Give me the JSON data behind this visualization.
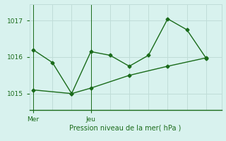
{
  "line1_x": [
    0,
    1,
    2,
    3,
    4,
    5,
    6,
    7,
    8,
    9
  ],
  "line1_y": [
    1016.2,
    1015.85,
    1015.0,
    1016.15,
    1016.05,
    1015.75,
    1016.05,
    1017.05,
    1016.75,
    1015.97
  ],
  "line2_x": [
    0,
    2,
    3,
    5,
    7,
    9
  ],
  "line2_y": [
    1015.1,
    1015.0,
    1015.15,
    1015.5,
    1015.75,
    1015.98
  ],
  "line_color": "#1a6b1a",
  "bg_color": "#d8f2ee",
  "grid_color": "#c0ddd8",
  "xlabel": "Pression niveau de la mer( hPa )",
  "yticks": [
    1015,
    1016,
    1017
  ],
  "xtick_positions": [
    0,
    3
  ],
  "xtick_labels": [
    "Mer",
    "Jeu"
  ],
  "ylim": [
    1014.55,
    1017.45
  ],
  "xlim": [
    -0.2,
    9.8
  ]
}
